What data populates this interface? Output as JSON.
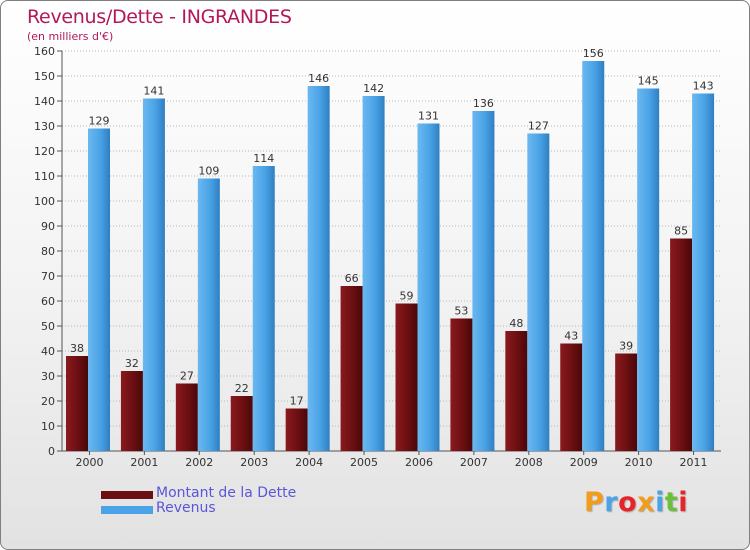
{
  "header": {
    "title": "Revenus/Dette - INGRANDES",
    "subtitle": "(en milliers d'€)"
  },
  "colors": {
    "dette": "#6b0f12",
    "revenus": "#4aa3e6",
    "title": "#b2185a",
    "legend_text": "#5a56d9"
  },
  "legend": {
    "items": [
      {
        "label": "Montant de la Dette",
        "color": "#6b0f12"
      },
      {
        "label": "Revenus",
        "color": "#4aa3e6"
      }
    ]
  },
  "logo": {
    "text": "Proxiti",
    "letters": [
      {
        "ch": "P",
        "color": "#f39c1b"
      },
      {
        "ch": "r",
        "color": "#4aa3e6"
      },
      {
        "ch": "o",
        "color": "#e8232a"
      },
      {
        "ch": "x",
        "color": "#f39c1b"
      },
      {
        "ch": "i",
        "color": "#4aa3e6"
      },
      {
        "ch": "t",
        "color": "#6cbf3a"
      },
      {
        "ch": "i",
        "color": "#e8232a"
      }
    ]
  },
  "chart_data": {
    "type": "bar",
    "title": "Revenus/Dette - INGRANDES",
    "ylabel": "(en milliers d'€)",
    "xlabel": "",
    "categories": [
      "2000",
      "2001",
      "2002",
      "2003",
      "2004",
      "2005",
      "2006",
      "2007",
      "2008",
      "2009",
      "2010",
      "2011"
    ],
    "series": [
      {
        "name": "Montant de la Dette",
        "values": [
          38,
          32,
          27,
          22,
          17,
          66,
          59,
          53,
          48,
          43,
          39,
          85
        ]
      },
      {
        "name": "Revenus",
        "values": [
          129,
          141,
          109,
          114,
          146,
          142,
          131,
          136,
          127,
          156,
          145,
          143
        ]
      }
    ],
    "ylim": [
      0,
      160
    ],
    "yticks": [
      0,
      10,
      20,
      30,
      40,
      50,
      60,
      70,
      80,
      90,
      100,
      110,
      120,
      130,
      140,
      150,
      160
    ],
    "grid": true,
    "legend_position": "bottom-left"
  }
}
